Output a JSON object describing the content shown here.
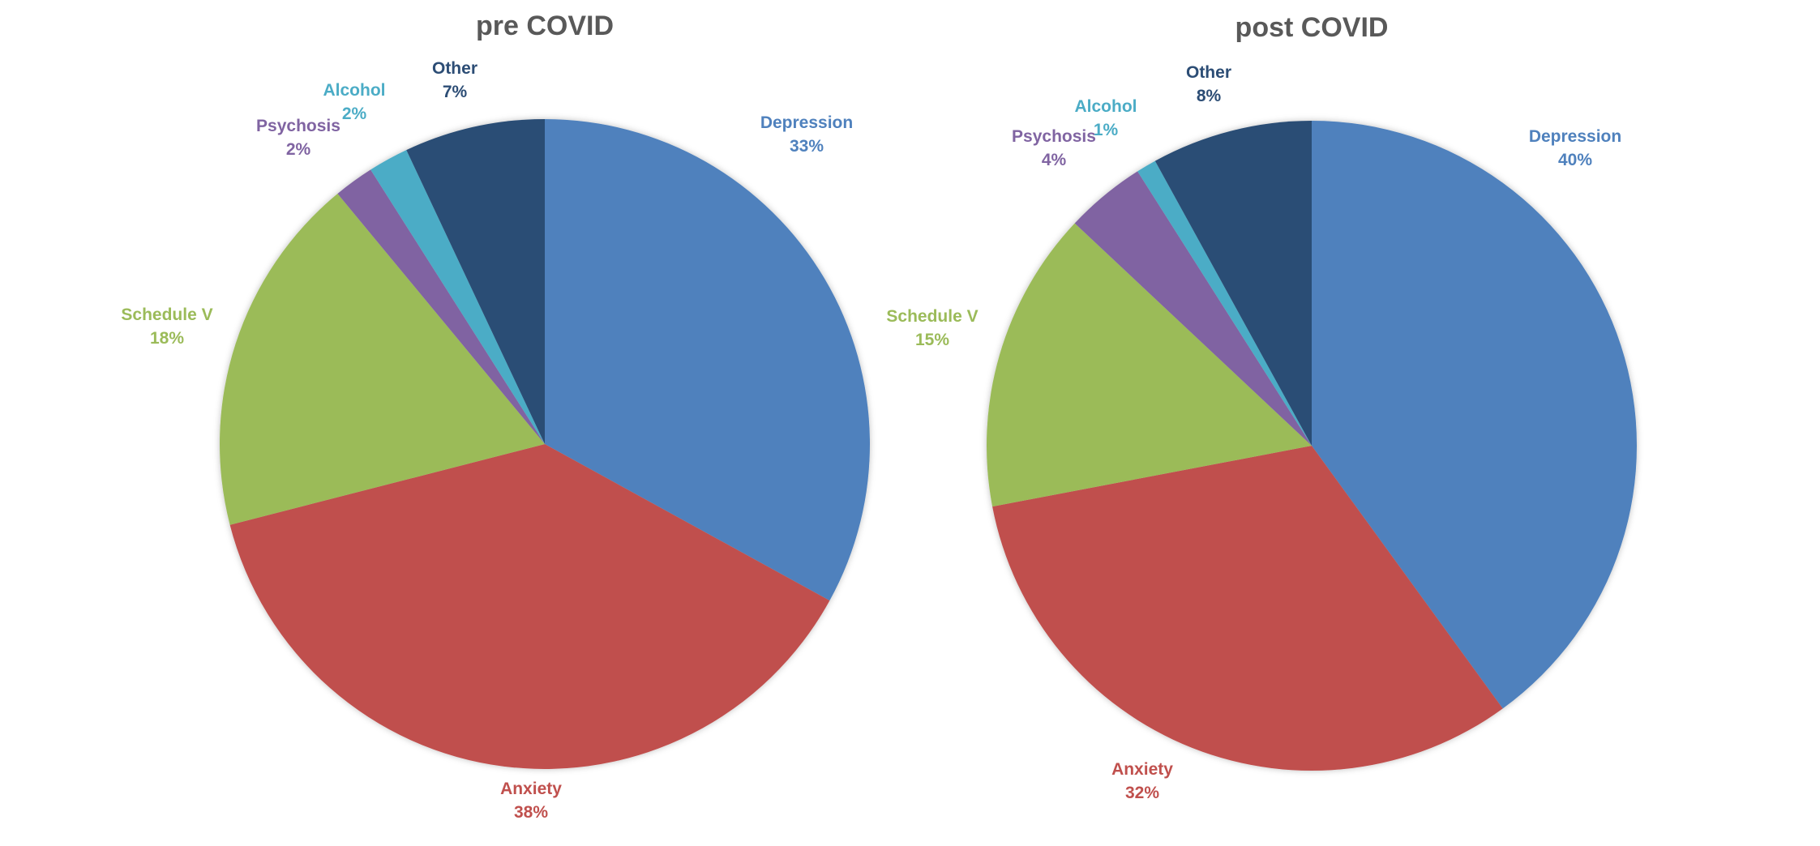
{
  "chart_data": [
    {
      "type": "pie",
      "title": "pre COVID",
      "start_angle_deg": 0,
      "direction": "clockwise",
      "slices": [
        {
          "label": "Depression",
          "value": 33,
          "display": "33%",
          "color": "#4F81BD"
        },
        {
          "label": "Anxiety",
          "value": 38,
          "display": "38%",
          "color": "#C0504D"
        },
        {
          "label": "Schedule V",
          "value": 18,
          "display": "18%",
          "color": "#9BBB59"
        },
        {
          "label": "Psychosis",
          "value": 2,
          "display": "2%",
          "color": "#8064A2"
        },
        {
          "label": "Alcohol",
          "value": 2,
          "display": "2%",
          "color": "#4BACC6"
        },
        {
          "label": "Other",
          "value": 7,
          "display": "7%",
          "color": "#2C4D75"
        }
      ]
    },
    {
      "type": "pie",
      "title": "post COVID",
      "start_angle_deg": 0,
      "direction": "clockwise",
      "slices": [
        {
          "label": "Depression",
          "value": 40,
          "display": "40%",
          "color": "#4F81BD"
        },
        {
          "label": "Anxiety",
          "value": 32,
          "display": "32%",
          "color": "#C0504D"
        },
        {
          "label": "Schedule V",
          "value": 15,
          "display": "15%",
          "color": "#9BBB59"
        },
        {
          "label": "Psychosis",
          "value": 4,
          "display": "4%",
          "color": "#8064A2"
        },
        {
          "label": "Alcohol",
          "value": 1,
          "display": "1%",
          "color": "#4BACC6"
        },
        {
          "label": "Other",
          "value": 8,
          "display": "8%",
          "color": "#2C4D75"
        }
      ]
    }
  ]
}
